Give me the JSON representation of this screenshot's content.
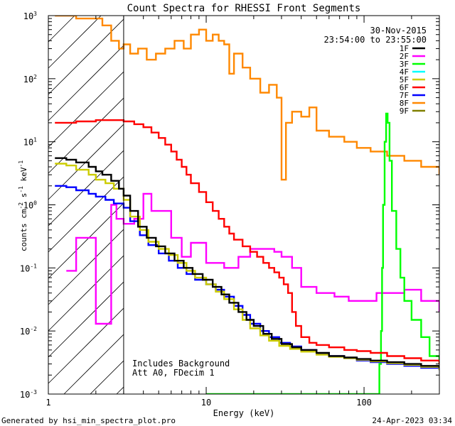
{
  "chart_data": {
    "type": "line",
    "title": "Count Spectra for RHESSI Front Segments",
    "xlabel": "Energy (keV)",
    "ylabel_base": "counts cm",
    "ylabel_sup1": "-2",
    "ylabel_mid": " s",
    "ylabel_sup2": "-1",
    "ylabel_mid2": " keV",
    "ylabel_sup3": "-1",
    "x_scale": "log",
    "y_scale": "log",
    "xlim": [
      1,
      300
    ],
    "ylim": [
      0.001,
      1000
    ],
    "x_ticks": [
      {
        "value": 1,
        "label": "1"
      },
      {
        "value": 10,
        "label": "10"
      },
      {
        "value": 100,
        "label": "100"
      }
    ],
    "y_ticks": [
      {
        "value": 1000,
        "base": "10",
        "exp": "3"
      },
      {
        "value": 100,
        "base": "10",
        "exp": "2"
      },
      {
        "value": 10,
        "base": "10",
        "exp": "1"
      },
      {
        "value": 1,
        "base": "10",
        "exp": "0"
      },
      {
        "value": 0.1,
        "base": "10",
        "exp": "-1"
      },
      {
        "value": 0.01,
        "base": "10",
        "exp": "-2"
      },
      {
        "value": 0.001,
        "base": "10",
        "exp": "-3"
      }
    ],
    "date": "30-Nov-2015",
    "time_range": "23:54:00 to 23:55:00",
    "annotation_lines": [
      "Includes Background",
      "Att A0, FDecim 1"
    ],
    "hatched_region_end_kev": 3,
    "legend_placement": "top-right",
    "series": [
      {
        "name": "1F",
        "color": "#000000",
        "points": [
          [
            1.1,
            5.5
          ],
          [
            1.3,
            5.2
          ],
          [
            1.5,
            4.7
          ],
          [
            1.8,
            4.0
          ],
          [
            2.0,
            3.4
          ],
          [
            2.2,
            3.0
          ],
          [
            2.5,
            2.4
          ],
          [
            2.8,
            1.8
          ],
          [
            3.0,
            1.4
          ],
          [
            3.3,
            0.8
          ],
          [
            3.7,
            0.45
          ],
          [
            4.2,
            0.3
          ],
          [
            4.8,
            0.22
          ],
          [
            5.5,
            0.17
          ],
          [
            6.3,
            0.13
          ],
          [
            7.2,
            0.1
          ],
          [
            8.2,
            0.08
          ],
          [
            9.5,
            0.065
          ],
          [
            11,
            0.05
          ],
          [
            12.5,
            0.038
          ],
          [
            14,
            0.028
          ],
          [
            16,
            0.02
          ],
          [
            18,
            0.015
          ],
          [
            20,
            0.012
          ],
          [
            23,
            0.009
          ],
          [
            26,
            0.0075
          ],
          [
            30,
            0.0062
          ],
          [
            35,
            0.0055
          ],
          [
            40,
            0.005
          ],
          [
            50,
            0.0045
          ],
          [
            60,
            0.004
          ],
          [
            75,
            0.0038
          ],
          [
            90,
            0.0036
          ],
          [
            110,
            0.0034
          ],
          [
            140,
            0.0032
          ],
          [
            180,
            0.003
          ],
          [
            230,
            0.0028
          ],
          [
            300,
            0.0026
          ]
        ]
      },
      {
        "name": "2F",
        "color": "#ff00ff",
        "points": [
          [
            1.3,
            0.09
          ],
          [
            1.5,
            0.3
          ],
          [
            1.8,
            0.3
          ],
          [
            2.0,
            0.013
          ],
          [
            2.3,
            0.013
          ],
          [
            2.5,
            1.0
          ],
          [
            2.7,
            0.6
          ],
          [
            3.0,
            0.5
          ],
          [
            3.5,
            0.6
          ],
          [
            4.0,
            1.5
          ],
          [
            4.5,
            0.8
          ],
          [
            6,
            0.3
          ],
          [
            7,
            0.15
          ],
          [
            8,
            0.25
          ],
          [
            10,
            0.12
          ],
          [
            13,
            0.1
          ],
          [
            16,
            0.15
          ],
          [
            19,
            0.2
          ],
          [
            23,
            0.2
          ],
          [
            27,
            0.18
          ],
          [
            30,
            0.15
          ],
          [
            35,
            0.1
          ],
          [
            40,
            0.05
          ],
          [
            50,
            0.04
          ],
          [
            65,
            0.035
          ],
          [
            80,
            0.03
          ],
          [
            100,
            0.03
          ],
          [
            120,
            0.04
          ],
          [
            180,
            0.045
          ],
          [
            230,
            0.03
          ],
          [
            300,
            0.02
          ]
        ]
      },
      {
        "name": "3F",
        "color": "#00ff00",
        "points": [
          [
            10,
            0.001
          ],
          [
            10.5,
            0.001
          ],
          [
            120,
            0.001
          ],
          [
            125,
            0.003
          ],
          [
            128,
            0.01
          ],
          [
            130,
            0.1
          ],
          [
            132,
            1.0
          ],
          [
            135,
            10
          ],
          [
            138,
            28
          ],
          [
            141,
            20
          ],
          [
            145,
            5
          ],
          [
            150,
            0.8
          ],
          [
            160,
            0.2
          ],
          [
            170,
            0.07
          ],
          [
            180,
            0.03
          ],
          [
            200,
            0.015
          ],
          [
            230,
            0.008
          ],
          [
            260,
            0.004
          ],
          [
            300,
            0.003
          ]
        ]
      },
      {
        "name": "4F",
        "color": "#00ffff",
        "points": []
      },
      {
        "name": "5F",
        "color": "#cccc00",
        "points": [
          [
            1.1,
            4.5
          ],
          [
            1.3,
            4.2
          ],
          [
            1.5,
            3.6
          ],
          [
            1.8,
            3.0
          ],
          [
            2.0,
            2.5
          ],
          [
            2.3,
            2.2
          ],
          [
            2.6,
            1.8
          ],
          [
            3.0,
            1.2
          ],
          [
            3.3,
            0.65
          ],
          [
            3.8,
            0.4
          ],
          [
            4.3,
            0.26
          ],
          [
            5,
            0.2
          ],
          [
            5.8,
            0.16
          ],
          [
            6.6,
            0.12
          ],
          [
            7.5,
            0.09
          ],
          [
            8.5,
            0.07
          ],
          [
            10,
            0.055
          ],
          [
            11.5,
            0.042
          ],
          [
            13,
            0.032
          ],
          [
            15,
            0.022
          ],
          [
            17,
            0.015
          ],
          [
            19,
            0.011
          ],
          [
            22,
            0.0085
          ],
          [
            25,
            0.007
          ],
          [
            29,
            0.0058
          ],
          [
            34,
            0.0052
          ],
          [
            40,
            0.0047
          ],
          [
            50,
            0.0042
          ],
          [
            60,
            0.0039
          ],
          [
            75,
            0.0037
          ],
          [
            90,
            0.0035
          ],
          [
            110,
            0.0033
          ],
          [
            140,
            0.0031
          ],
          [
            180,
            0.0029
          ],
          [
            230,
            0.0027
          ],
          [
            300,
            0.0024
          ]
        ]
      },
      {
        "name": "6F",
        "color": "#ff0000",
        "points": [
          [
            1.1,
            20
          ],
          [
            1.5,
            21
          ],
          [
            2.0,
            22
          ],
          [
            2.5,
            22
          ],
          [
            3.0,
            21
          ],
          [
            3.5,
            19
          ],
          [
            4.0,
            17
          ],
          [
            4.5,
            14
          ],
          [
            5.0,
            11.5
          ],
          [
            5.5,
            9
          ],
          [
            6.0,
            7
          ],
          [
            6.5,
            5.2
          ],
          [
            7.0,
            4.0
          ],
          [
            7.5,
            3.0
          ],
          [
            8.0,
            2.2
          ],
          [
            9.0,
            1.6
          ],
          [
            10,
            1.1
          ],
          [
            11,
            0.8
          ],
          [
            12,
            0.6
          ],
          [
            13,
            0.45
          ],
          [
            14,
            0.35
          ],
          [
            15,
            0.28
          ],
          [
            17,
            0.22
          ],
          [
            19,
            0.18
          ],
          [
            21,
            0.15
          ],
          [
            23,
            0.12
          ],
          [
            25,
            0.1
          ],
          [
            27,
            0.085
          ],
          [
            29,
            0.07
          ],
          [
            31,
            0.055
          ],
          [
            33,
            0.04
          ],
          [
            35,
            0.02
          ],
          [
            37,
            0.012
          ],
          [
            40,
            0.008
          ],
          [
            45,
            0.0065
          ],
          [
            50,
            0.006
          ],
          [
            60,
            0.0055
          ],
          [
            75,
            0.005
          ],
          [
            90,
            0.0048
          ],
          [
            110,
            0.0045
          ],
          [
            140,
            0.004
          ],
          [
            180,
            0.0037
          ],
          [
            230,
            0.0034
          ],
          [
            300,
            0.003
          ]
        ]
      },
      {
        "name": "7F",
        "color": "#0000ff",
        "points": [
          [
            1.1,
            2.0
          ],
          [
            1.3,
            1.9
          ],
          [
            1.5,
            1.7
          ],
          [
            1.8,
            1.5
          ],
          [
            2.0,
            1.35
          ],
          [
            2.3,
            1.2
          ],
          [
            2.6,
            1.05
          ],
          [
            3.0,
            0.9
          ],
          [
            3.3,
            0.55
          ],
          [
            3.8,
            0.33
          ],
          [
            4.3,
            0.23
          ],
          [
            5,
            0.17
          ],
          [
            5.8,
            0.13
          ],
          [
            6.6,
            0.1
          ],
          [
            7.5,
            0.08
          ],
          [
            8.5,
            0.065
          ],
          [
            10,
            0.055
          ],
          [
            11.5,
            0.045
          ],
          [
            13,
            0.035
          ],
          [
            15,
            0.025
          ],
          [
            17,
            0.018
          ],
          [
            19,
            0.013
          ],
          [
            22,
            0.01
          ],
          [
            25,
            0.008
          ],
          [
            29,
            0.0065
          ],
          [
            34,
            0.0057
          ],
          [
            40,
            0.005
          ],
          [
            50,
            0.0044
          ],
          [
            60,
            0.004
          ],
          [
            75,
            0.0037
          ],
          [
            90,
            0.0034
          ],
          [
            110,
            0.0032
          ],
          [
            140,
            0.003
          ],
          [
            180,
            0.0028
          ],
          [
            230,
            0.0026
          ],
          [
            300,
            0.0024
          ]
        ]
      },
      {
        "name": "8F",
        "color": "#ff8800",
        "points": [
          [
            1.1,
            1000
          ],
          [
            1.5,
            1000
          ],
          [
            1.5,
            900
          ],
          [
            2.0,
            900
          ],
          [
            2.2,
            700
          ],
          [
            2.5,
            400
          ],
          [
            2.8,
            300
          ],
          [
            3.0,
            350
          ],
          [
            3.3,
            250
          ],
          [
            3.7,
            300
          ],
          [
            4.2,
            200
          ],
          [
            4.8,
            250
          ],
          [
            5.5,
            300
          ],
          [
            6.3,
            400
          ],
          [
            7.2,
            300
          ],
          [
            8.0,
            500
          ],
          [
            9.0,
            600
          ],
          [
            10,
            400
          ],
          [
            11,
            500
          ],
          [
            12,
            400
          ],
          [
            13,
            350
          ],
          [
            14,
            120
          ],
          [
            15,
            250
          ],
          [
            17,
            150
          ],
          [
            19,
            100
          ],
          [
            22,
            60
          ],
          [
            25,
            80
          ],
          [
            28,
            50
          ],
          [
            30,
            2.5
          ],
          [
            32,
            20
          ],
          [
            35,
            30
          ],
          [
            40,
            25
          ],
          [
            45,
            35
          ],
          [
            50,
            15
          ],
          [
            60,
            12
          ],
          [
            75,
            10
          ],
          [
            90,
            8
          ],
          [
            110,
            7
          ],
          [
            140,
            6
          ],
          [
            180,
            5
          ],
          [
            230,
            4
          ],
          [
            300,
            3
          ]
        ]
      },
      {
        "name": "9F",
        "color": "#808000",
        "points": []
      }
    ]
  },
  "footer": {
    "left": "Generated by hsi_min_spectra_plot.pro",
    "right": "24-Apr-2023 03:34"
  }
}
